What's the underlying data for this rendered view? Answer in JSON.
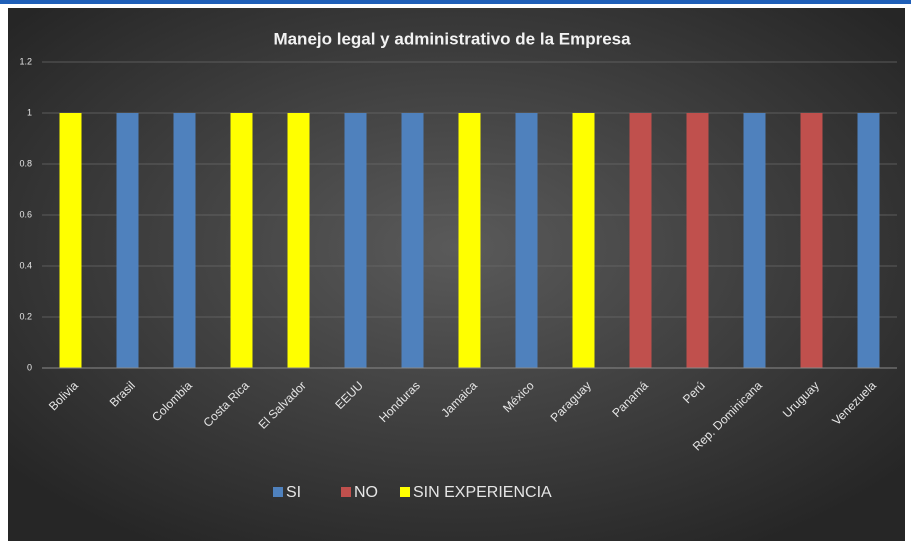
{
  "chart_data": {
    "type": "stacked_bar",
    "title": "Manejo legal y administrativo de la Empresa",
    "categories": [
      "Bolivia",
      "Brasil",
      "Colombia",
      "Costa Rica",
      "El Salvador",
      "EEUU",
      "Honduras",
      "Jamaica",
      "México",
      "Paraguay",
      "Panamá",
      "Perú",
      "Rep. Dominicana",
      "Uruguay",
      "Venezuela"
    ],
    "series": [
      {
        "name": "SI",
        "color": "#4f81bd",
        "values": [
          0,
          1,
          1,
          0,
          0,
          1,
          1,
          0,
          1,
          0,
          0,
          0,
          1,
          0,
          1
        ]
      },
      {
        "name": "NO",
        "color": "#c0504d",
        "values": [
          0,
          0,
          0,
          0,
          0,
          0,
          0,
          0,
          0,
          0,
          1,
          1,
          0,
          1,
          0
        ]
      },
      {
        "name": "SIN EXPERIENCIA",
        "color": "#ffff00",
        "values": [
          1,
          0,
          0,
          1,
          1,
          0,
          0,
          1,
          0,
          1,
          0,
          0,
          0,
          0,
          0
        ]
      }
    ],
    "ylim": [
      0,
      1.2
    ],
    "yticks": [
      0,
      0.2,
      0.4,
      0.6,
      0.8,
      1,
      1.2
    ],
    "grid": true,
    "legend": "bottom"
  }
}
